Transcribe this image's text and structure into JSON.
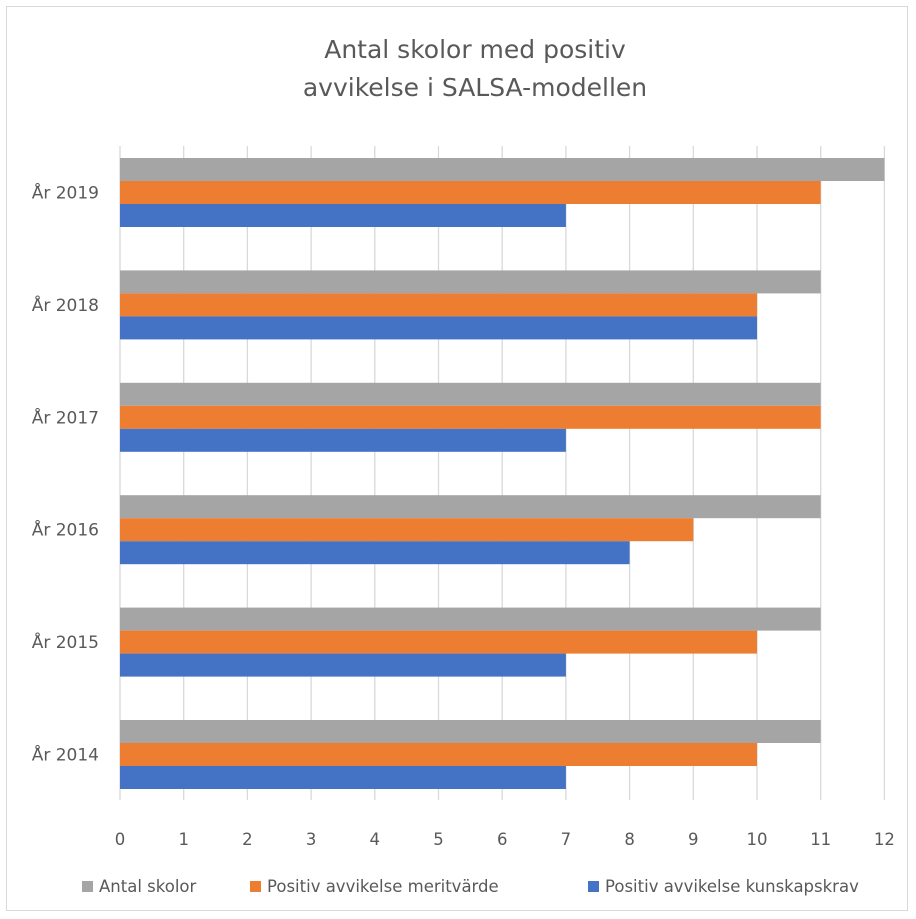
{
  "chart_data": {
    "type": "bar",
    "orientation": "horizontal",
    "title": [
      "Antal skolor med positiv",
      "avvikelse i SALSA-modellen"
    ],
    "categories": [
      "År 2019",
      "År 2018",
      "År 2017",
      "År 2016",
      "År 2015",
      "År 2014"
    ],
    "series": [
      {
        "name": "Antal skolor",
        "color": "#a5a5a5",
        "values": [
          12,
          11,
          11,
          11,
          11,
          11
        ]
      },
      {
        "name": "Positiv avvikelse meritvärde",
        "color": "#ed7d31",
        "values": [
          11,
          10,
          11,
          9,
          10,
          10
        ]
      },
      {
        "name": "Positiv avvikelse kunskapskrav",
        "color": "#4472c4",
        "values": [
          7,
          10,
          7,
          8,
          7,
          7
        ]
      }
    ],
    "xlim": [
      0,
      12
    ],
    "xticks": [
      "0",
      "1",
      "2",
      "3",
      "4",
      "5",
      "6",
      "7",
      "8",
      "9",
      "10",
      "11",
      "12"
    ],
    "grid": true,
    "gridline_color": "#d9d9d9",
    "legend_position": "bottom"
  }
}
